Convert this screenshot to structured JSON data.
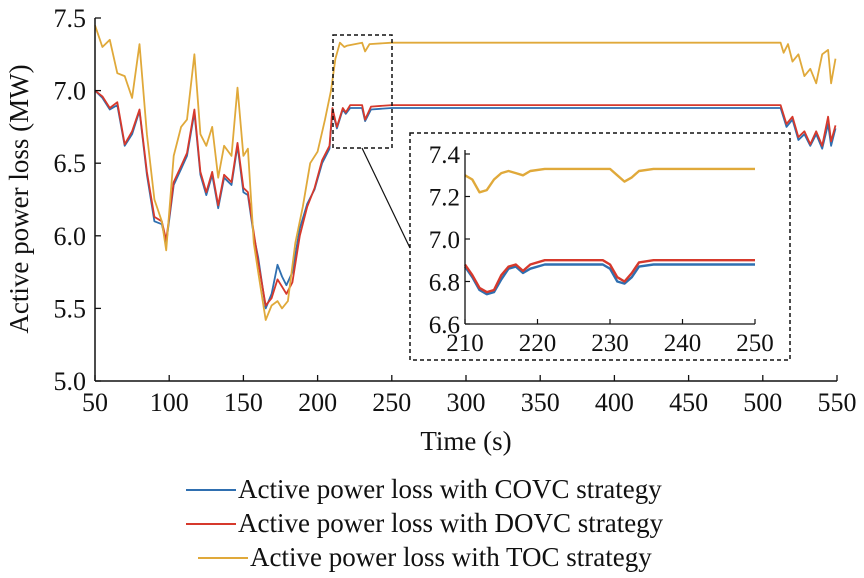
{
  "chart_data": {
    "type": "line",
    "xlabel": "Time (s)",
    "ylabel": "Active power loss (MW)",
    "xlim": [
      50,
      550
    ],
    "ylim": [
      5.0,
      7.5
    ],
    "x_ticks": [
      "50",
      "100",
      "150",
      "200",
      "250",
      "300",
      "350",
      "400",
      "450",
      "500",
      "550"
    ],
    "y_ticks": [
      "5.0",
      "5.5",
      "6.0",
      "6.5",
      "7.0",
      "7.5"
    ],
    "legend_position": "bottom",
    "series": [
      {
        "name": "Active power loss with COVC strategy",
        "color": "#2f6fb0",
        "points": [
          [
            50,
            7.0
          ],
          [
            55,
            6.95
          ],
          [
            60,
            6.87
          ],
          [
            65,
            6.9
          ],
          [
            70,
            6.62
          ],
          [
            75,
            6.7
          ],
          [
            80,
            6.86
          ],
          [
            85,
            6.42
          ],
          [
            90,
            6.1
          ],
          [
            95,
            6.08
          ],
          [
            98,
            5.95
          ],
          [
            103,
            6.35
          ],
          [
            108,
            6.46
          ],
          [
            112,
            6.55
          ],
          [
            117,
            6.85
          ],
          [
            121,
            6.42
          ],
          [
            125,
            6.28
          ],
          [
            129,
            6.42
          ],
          [
            133,
            6.19
          ],
          [
            137,
            6.4
          ],
          [
            142,
            6.35
          ],
          [
            146,
            6.62
          ],
          [
            150,
            6.3
          ],
          [
            153,
            6.28
          ],
          [
            157,
            6.0
          ],
          [
            160,
            5.85
          ],
          [
            165,
            5.5
          ],
          [
            169,
            5.6
          ],
          [
            173,
            5.8
          ],
          [
            176,
            5.72
          ],
          [
            179,
            5.66
          ],
          [
            183,
            5.75
          ],
          [
            188,
            6.05
          ],
          [
            193,
            6.22
          ],
          [
            198,
            6.32
          ],
          [
            203,
            6.5
          ],
          [
            208,
            6.6
          ],
          [
            210,
            6.86
          ],
          [
            213,
            6.74
          ],
          [
            217,
            6.87
          ],
          [
            219,
            6.84
          ],
          [
            222,
            6.88
          ],
          [
            230,
            6.88
          ],
          [
            232,
            6.79
          ],
          [
            236,
            6.87
          ],
          [
            250,
            6.88
          ],
          [
            300,
            6.88
          ],
          [
            400,
            6.88
          ],
          [
            500,
            6.88
          ],
          [
            512,
            6.88
          ],
          [
            516,
            6.75
          ],
          [
            520,
            6.8
          ],
          [
            524,
            6.66
          ],
          [
            528,
            6.7
          ],
          [
            532,
            6.62
          ],
          [
            536,
            6.7
          ],
          [
            540,
            6.6
          ],
          [
            544,
            6.77
          ],
          [
            546,
            6.62
          ],
          [
            549,
            6.74
          ]
        ]
      },
      {
        "name": "Active power loss with DOVC strategy",
        "color": "#d6392c",
        "points": [
          [
            50,
            7.0
          ],
          [
            55,
            6.96
          ],
          [
            60,
            6.88
          ],
          [
            65,
            6.92
          ],
          [
            70,
            6.63
          ],
          [
            75,
            6.72
          ],
          [
            80,
            6.87
          ],
          [
            85,
            6.44
          ],
          [
            90,
            6.13
          ],
          [
            95,
            6.1
          ],
          [
            98,
            5.97
          ],
          [
            103,
            6.37
          ],
          [
            108,
            6.48
          ],
          [
            112,
            6.57
          ],
          [
            117,
            6.87
          ],
          [
            121,
            6.44
          ],
          [
            125,
            6.3
          ],
          [
            129,
            6.44
          ],
          [
            133,
            6.21
          ],
          [
            137,
            6.42
          ],
          [
            142,
            6.37
          ],
          [
            146,
            6.64
          ],
          [
            150,
            6.33
          ],
          [
            153,
            6.3
          ],
          [
            157,
            6.02
          ],
          [
            160,
            5.82
          ],
          [
            165,
            5.52
          ],
          [
            169,
            5.57
          ],
          [
            173,
            5.7
          ],
          [
            176,
            5.65
          ],
          [
            179,
            5.6
          ],
          [
            183,
            5.68
          ],
          [
            188,
            6.0
          ],
          [
            193,
            6.2
          ],
          [
            198,
            6.33
          ],
          [
            203,
            6.52
          ],
          [
            208,
            6.62
          ],
          [
            210,
            6.88
          ],
          [
            213,
            6.75
          ],
          [
            217,
            6.88
          ],
          [
            219,
            6.85
          ],
          [
            222,
            6.9
          ],
          [
            230,
            6.9
          ],
          [
            232,
            6.8
          ],
          [
            236,
            6.89
          ],
          [
            250,
            6.9
          ],
          [
            300,
            6.9
          ],
          [
            400,
            6.9
          ],
          [
            500,
            6.9
          ],
          [
            512,
            6.9
          ],
          [
            516,
            6.77
          ],
          [
            520,
            6.82
          ],
          [
            524,
            6.68
          ],
          [
            528,
            6.72
          ],
          [
            532,
            6.63
          ],
          [
            536,
            6.72
          ],
          [
            540,
            6.62
          ],
          [
            544,
            6.82
          ],
          [
            546,
            6.65
          ],
          [
            549,
            6.76
          ]
        ]
      },
      {
        "name": "Active power loss with TOC strategy",
        "color": "#e0a93a",
        "points": [
          [
            50,
            7.45
          ],
          [
            55,
            7.3
          ],
          [
            60,
            7.35
          ],
          [
            65,
            7.12
          ],
          [
            70,
            7.1
          ],
          [
            75,
            6.95
          ],
          [
            80,
            7.32
          ],
          [
            85,
            6.7
          ],
          [
            90,
            6.25
          ],
          [
            95,
            6.1
          ],
          [
            98,
            5.9
          ],
          [
            103,
            6.55
          ],
          [
            108,
            6.75
          ],
          [
            112,
            6.8
          ],
          [
            117,
            7.25
          ],
          [
            121,
            6.7
          ],
          [
            125,
            6.62
          ],
          [
            129,
            6.75
          ],
          [
            133,
            6.4
          ],
          [
            137,
            6.62
          ],
          [
            142,
            6.55
          ],
          [
            146,
            7.02
          ],
          [
            150,
            6.55
          ],
          [
            153,
            6.6
          ],
          [
            157,
            5.95
          ],
          [
            160,
            5.75
          ],
          [
            165,
            5.42
          ],
          [
            169,
            5.52
          ],
          [
            173,
            5.55
          ],
          [
            176,
            5.5
          ],
          [
            180,
            5.55
          ],
          [
            185,
            5.95
          ],
          [
            190,
            6.2
          ],
          [
            195,
            6.5
          ],
          [
            200,
            6.58
          ],
          [
            205,
            6.8
          ],
          [
            209,
            7.0
          ],
          [
            212,
            7.22
          ],
          [
            215,
            7.33
          ],
          [
            218,
            7.3
          ],
          [
            220,
            7.31
          ],
          [
            230,
            7.33
          ],
          [
            232,
            7.27
          ],
          [
            235,
            7.32
          ],
          [
            250,
            7.33
          ],
          [
            300,
            7.33
          ],
          [
            400,
            7.33
          ],
          [
            500,
            7.33
          ],
          [
            512,
            7.33
          ],
          [
            514,
            7.26
          ],
          [
            517,
            7.32
          ],
          [
            520,
            7.2
          ],
          [
            524,
            7.25
          ],
          [
            528,
            7.1
          ],
          [
            532,
            7.15
          ],
          [
            536,
            7.05
          ],
          [
            540,
            7.25
          ],
          [
            544,
            7.28
          ],
          [
            546,
            7.05
          ],
          [
            549,
            7.22
          ]
        ]
      }
    ],
    "inset": {
      "xlim": [
        210,
        250
      ],
      "ylim": [
        6.6,
        7.4
      ],
      "x_ticks": [
        "210",
        "220",
        "230",
        "240",
        "250"
      ],
      "y_ticks": [
        "6.6",
        "6.8",
        "7.0",
        "7.2",
        "7.4"
      ],
      "series_points": [
        [
          [
            210,
            6.87
          ],
          [
            211,
            6.82
          ],
          [
            212,
            6.76
          ],
          [
            213,
            6.74
          ],
          [
            214,
            6.75
          ],
          [
            215,
            6.81
          ],
          [
            216,
            6.86
          ],
          [
            217,
            6.87
          ],
          [
            218,
            6.84
          ],
          [
            219,
            6.86
          ],
          [
            221,
            6.88
          ],
          [
            229,
            6.88
          ],
          [
            230,
            6.86
          ],
          [
            231,
            6.8
          ],
          [
            232,
            6.79
          ],
          [
            233,
            6.82
          ],
          [
            234,
            6.87
          ],
          [
            236,
            6.88
          ],
          [
            250,
            6.88
          ]
        ],
        [
          [
            210,
            6.88
          ],
          [
            211,
            6.83
          ],
          [
            212,
            6.77
          ],
          [
            213,
            6.75
          ],
          [
            214,
            6.76
          ],
          [
            215,
            6.83
          ],
          [
            216,
            6.87
          ],
          [
            217,
            6.88
          ],
          [
            218,
            6.85
          ],
          [
            219,
            6.88
          ],
          [
            221,
            6.9
          ],
          [
            229,
            6.9
          ],
          [
            230,
            6.88
          ],
          [
            231,
            6.82
          ],
          [
            232,
            6.8
          ],
          [
            233,
            6.84
          ],
          [
            234,
            6.89
          ],
          [
            236,
            6.9
          ],
          [
            250,
            6.9
          ]
        ],
        [
          [
            210,
            7.3
          ],
          [
            211,
            7.28
          ],
          [
            212,
            7.22
          ],
          [
            213,
            7.23
          ],
          [
            214,
            7.28
          ],
          [
            215,
            7.31
          ],
          [
            216,
            7.32
          ],
          [
            217,
            7.31
          ],
          [
            218,
            7.3
          ],
          [
            219,
            7.32
          ],
          [
            221,
            7.33
          ],
          [
            230,
            7.33
          ],
          [
            231,
            7.3
          ],
          [
            232,
            7.27
          ],
          [
            233,
            7.29
          ],
          [
            234,
            7.32
          ],
          [
            236,
            7.33
          ],
          [
            250,
            7.33
          ]
        ]
      ]
    }
  }
}
